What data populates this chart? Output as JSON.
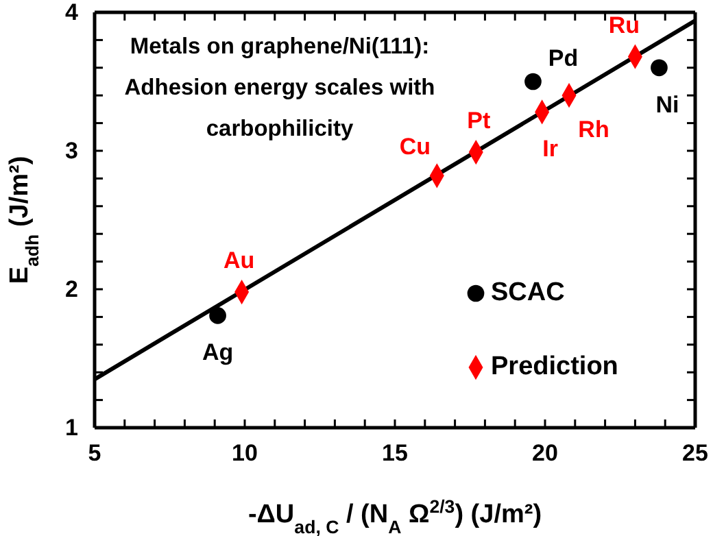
{
  "chart_data": {
    "type": "scatter",
    "title": "Metals on graphene/Ni(111): Adhesion energy scales with carbophilicity",
    "xlabel": "-ΔU$_{ad, C}$ / (N$_{A}$ Ω$^{2/3}$) (J/m²)",
    "ylabel": "E$_{adh}$ (J/m²)",
    "xlim": [
      5,
      25
    ],
    "ylim": [
      1,
      4
    ],
    "xticks": [
      5,
      {
        "value": 6,
        "label": null
      },
      {
        "value": 7,
        "label": null
      },
      {
        "value": 8,
        "label": null
      },
      {
        "value": 9,
        "label": null
      },
      10,
      {
        "value": 11,
        "label": null
      },
      {
        "value": 12,
        "label": null
      },
      {
        "value": 13,
        "label": null
      },
      {
        "value": 14,
        "label": null
      },
      15,
      {
        "value": 16,
        "label": null
      },
      {
        "value": 17,
        "label": null
      },
      {
        "value": 18,
        "label": null
      },
      {
        "value": 19,
        "label": null
      },
      20,
      {
        "value": 21,
        "label": null
      },
      {
        "value": 22,
        "label": null
      },
      {
        "value": 23,
        "label": null
      },
      {
        "value": 24,
        "label": null
      },
      25
    ],
    "yticks": [
      1,
      {
        "value": 1.2,
        "label": null
      },
      {
        "value": 1.4,
        "label": null
      },
      {
        "value": 1.6,
        "label": null
      },
      {
        "value": 1.8,
        "label": null
      },
      2,
      {
        "value": 2.2,
        "label": null
      },
      {
        "value": 2.4,
        "label": null
      },
      {
        "value": 2.6,
        "label": null
      },
      {
        "value": 2.8,
        "label": null
      },
      3,
      {
        "value": 3.2,
        "label": null
      },
      {
        "value": 3.4,
        "label": null
      },
      {
        "value": 3.6,
        "label": null
      },
      {
        "value": 3.8,
        "label": null
      },
      4
    ],
    "grid": false,
    "legend": "bottom right",
    "series": [
      {
        "type": "line",
        "marker": "none",
        "color": "#000000",
        "x": [
          5,
          25
        ],
        "values": [
          1.35,
          3.94
        ]
      },
      {
        "name": "SCAC",
        "marker": "circle",
        "color": "#000000",
        "x": [
          9.1,
          19.6,
          23.8
        ],
        "values": [
          1.81,
          3.5,
          3.6
        ]
      },
      {
        "name": "Prediction",
        "marker": "diamond",
        "color": "#ff0000",
        "x": [
          9.9,
          16.4,
          17.7,
          19.9,
          20.8,
          23.0
        ],
        "values": [
          1.98,
          2.82,
          2.99,
          3.28,
          3.4,
          3.68
        ]
      }
    ],
    "annotations": [
      {
        "text": "Ag",
        "x": 9.1,
        "y": 1.81
      },
      {
        "text": "Pd",
        "x": 19.6,
        "y": 3.5
      },
      {
        "text": "Ni",
        "x": 23.8,
        "y": 3.6
      },
      {
        "text": "Au",
        "x": 9.9,
        "y": 1.98
      },
      {
        "text": "Cu",
        "x": 16.4,
        "y": 2.82
      },
      {
        "text": "Pt",
        "x": 17.7,
        "y": 2.99
      },
      {
        "text": "Ir",
        "x": 19.9,
        "y": 3.28
      },
      {
        "text": "Rh",
        "x": 20.8,
        "y": 3.4
      },
      {
        "text": "Ru",
        "x": 23.0,
        "y": 3.68
      }
    ]
  }
}
